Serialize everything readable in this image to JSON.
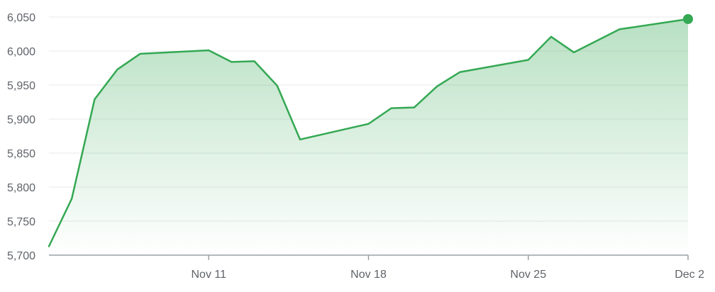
{
  "chart_data": {
    "type": "area",
    "title": "",
    "xlabel": "",
    "ylabel": "",
    "ylim": [
      5700,
      6050
    ],
    "yticks": [
      5700,
      5750,
      5800,
      5850,
      5900,
      5950,
      6000,
      6050
    ],
    "ytick_labels": [
      "5,700",
      "5,750",
      "5,800",
      "5,850",
      "5,900",
      "5,950",
      "6,000",
      "6,050"
    ],
    "xlim": [
      "Nov 4",
      "Dec 2"
    ],
    "xticks": [
      {
        "date": "Nov 11",
        "label": "Nov 11"
      },
      {
        "date": "Nov 18",
        "label": "Nov 18"
      },
      {
        "date": "Nov 25",
        "label": "Nov 25"
      },
      {
        "date": "Dec 2",
        "label": "Dec 2"
      }
    ],
    "grid": true,
    "legend": "none",
    "series": [
      {
        "x": [
          "Nov 4",
          "Nov 5",
          "Nov 6",
          "Nov 7",
          "Nov 8",
          "Nov 11",
          "Nov 12",
          "Nov 13",
          "Nov 14",
          "Nov 15",
          "Nov 18",
          "Nov 19",
          "Nov 20",
          "Nov 21",
          "Nov 22",
          "Nov 25",
          "Nov 26",
          "Nov 27",
          "Nov 29",
          "Dec 2"
        ],
        "values": [
          5713,
          5783,
          5929,
          5973,
          5996,
          6001,
          5984,
          5985,
          5949,
          5870,
          5893,
          5916,
          5917,
          5948,
          5969,
          5987,
          6021,
          5998,
          6032,
          6047
        ]
      }
    ],
    "colors": {
      "line": "#34a853",
      "fill_top": "#34a853",
      "grid": "#e8eaed",
      "axis": "#9aa0a6",
      "tick_text": "#5f6368"
    }
  }
}
